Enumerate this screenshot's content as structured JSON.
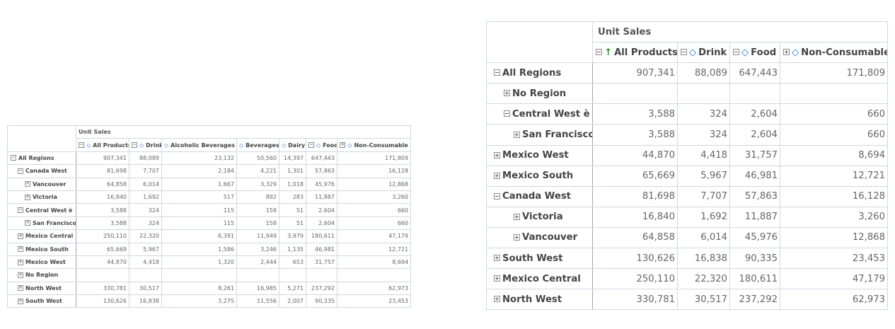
{
  "measure": "Unit Sales",
  "icons": {
    "expand": "plus-box-icon",
    "collapse": "minus-box-icon",
    "sort": "sort-diamond-icon",
    "sort_up": "sort-up-arrow-icon"
  },
  "colors": {
    "border": "#cfd8e3",
    "sort_up": "#1f9a1f",
    "sort": "#1a6fd0"
  },
  "small_table": {
    "columns": [
      "All Products",
      "Drink",
      "Alcoholic Beverages",
      "Beverages",
      "Dairy",
      "Food",
      "Non-Consumable"
    ],
    "rows": [
      {
        "label": "All Regions",
        "values": [
          "907,341",
          "88,089",
          "23,132",
          "50,560",
          "14,397",
          "647,443",
          "171,809"
        ]
      },
      {
        "label": "Canada West",
        "values": [
          "81,698",
          "7,707",
          "2,184",
          "4,221",
          "1,301",
          "57,863",
          "16,128"
        ]
      },
      {
        "label": "Vancouver",
        "values": [
          "64,858",
          "6,014",
          "1,667",
          "3,329",
          "1,018",
          "45,976",
          "12,868"
        ]
      },
      {
        "label": "Victoria",
        "values": [
          "16,840",
          "1,692",
          "517",
          "892",
          "283",
          "11,887",
          "3,260"
        ]
      },
      {
        "label": "Central West è",
        "values": [
          "3,588",
          "324",
          "115",
          "158",
          "51",
          "2,604",
          "660"
        ]
      },
      {
        "label": "San Francisco",
        "values": [
          "3,588",
          "324",
          "115",
          "158",
          "51",
          "2,604",
          "660"
        ]
      },
      {
        "label": "Mexico Central",
        "values": [
          "250,110",
          "22,320",
          "6,391",
          "11,949",
          "3,979",
          "180,611",
          "47,179"
        ]
      },
      {
        "label": "Mexico South",
        "values": [
          "65,669",
          "5,967",
          "1,586",
          "3,246",
          "1,135",
          "46,981",
          "12,721"
        ]
      },
      {
        "label": "Mexico West",
        "values": [
          "44,870",
          "4,418",
          "1,320",
          "2,444",
          "653",
          "31,757",
          "8,694"
        ]
      },
      {
        "label": "No Region",
        "values": [
          "",
          "",
          "",
          "",
          "",
          "",
          ""
        ]
      },
      {
        "label": "North West",
        "values": [
          "330,781",
          "30,517",
          "8,261",
          "16,985",
          "5,271",
          "237,292",
          "62,973"
        ]
      },
      {
        "label": "South West",
        "values": [
          "130,626",
          "16,838",
          "3,275",
          "11,556",
          "2,007",
          "90,335",
          "23,453"
        ]
      }
    ]
  },
  "large_table": {
    "columns": [
      "All Products",
      "Drink",
      "Food",
      "Non-Consumable"
    ],
    "rows": [
      {
        "label": "All Regions",
        "values": [
          "907,341",
          "88,089",
          "647,443",
          "171,809"
        ]
      },
      {
        "label": "No Region",
        "values": [
          "",
          "",
          "",
          ""
        ]
      },
      {
        "label": "Central West è",
        "values": [
          "3,588",
          "324",
          "2,604",
          "660"
        ]
      },
      {
        "label": "San Francisco",
        "values": [
          "3,588",
          "324",
          "2,604",
          "660"
        ]
      },
      {
        "label": "Mexico West",
        "values": [
          "44,870",
          "4,418",
          "31,757",
          "8,694"
        ]
      },
      {
        "label": "Mexico South",
        "values": [
          "65,669",
          "5,967",
          "46,981",
          "12,721"
        ]
      },
      {
        "label": "Canada West",
        "values": [
          "81,698",
          "7,707",
          "57,863",
          "16,128"
        ]
      },
      {
        "label": "Victoria",
        "values": [
          "16,840",
          "1,692",
          "11,887",
          "3,260"
        ]
      },
      {
        "label": "Vancouver",
        "values": [
          "64,858",
          "6,014",
          "45,976",
          "12,868"
        ]
      },
      {
        "label": "South West",
        "values": [
          "130,626",
          "16,838",
          "90,335",
          "23,453"
        ]
      },
      {
        "label": "Mexico Central",
        "values": [
          "250,110",
          "22,320",
          "180,611",
          "47,179"
        ]
      },
      {
        "label": "North West",
        "values": [
          "330,781",
          "30,517",
          "237,292",
          "62,973"
        ]
      }
    ]
  }
}
